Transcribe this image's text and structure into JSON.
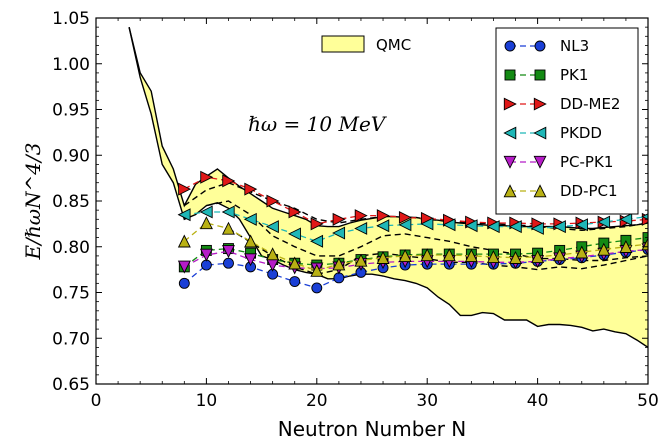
{
  "chart_data": {
    "type": "line",
    "xlabel": "Neutron Number N",
    "ylabel": "E/ℏωN^4/3",
    "annotation": "ℏω = 10 MeV",
    "xlim": [
      0,
      50
    ],
    "ylim": [
      0.65,
      1.05
    ],
    "x_ticks": [
      "0",
      "10",
      "20",
      "30",
      "40",
      "50"
    ],
    "y_ticks": [
      "0.65",
      "0.70",
      "0.75",
      "0.80",
      "0.85",
      "0.90",
      "0.95",
      "1.00",
      "1.05"
    ],
    "grid": false,
    "band": {
      "name": "QMC",
      "color": "#ffff99",
      "x": [
        3,
        4,
        5,
        6,
        7,
        8,
        9,
        10,
        11,
        12,
        13,
        14,
        15,
        16,
        17,
        18,
        19,
        20,
        21,
        22,
        23,
        24,
        25,
        26,
        27,
        28,
        29,
        30,
        31,
        32,
        33,
        34,
        35,
        36,
        37,
        38,
        39,
        40,
        41,
        42,
        43,
        44,
        45,
        46,
        47,
        48,
        49,
        50
      ],
      "upper": [
        1.04,
        0.99,
        0.97,
        0.91,
        0.885,
        0.845,
        0.868,
        0.877,
        0.885,
        0.875,
        0.866,
        0.858,
        0.85,
        0.842,
        0.838,
        0.834,
        0.83,
        0.823,
        0.822,
        0.822,
        0.826,
        0.829,
        0.831,
        0.833,
        0.833,
        0.832,
        0.832,
        0.83,
        0.829,
        0.827,
        0.826,
        0.825,
        0.824,
        0.823,
        0.823,
        0.822,
        0.822,
        0.822,
        0.822,
        0.822,
        0.821,
        0.82,
        0.82,
        0.821,
        0.822,
        0.823,
        0.824,
        0.826
      ],
      "lower": [
        1.04,
        0.985,
        0.945,
        0.89,
        0.87,
        0.83,
        0.835,
        0.845,
        0.848,
        0.842,
        0.83,
        0.81,
        0.79,
        0.786,
        0.78,
        0.775,
        0.772,
        0.77,
        0.765,
        0.765,
        0.768,
        0.77,
        0.77,
        0.768,
        0.765,
        0.763,
        0.76,
        0.755,
        0.745,
        0.737,
        0.725,
        0.725,
        0.728,
        0.727,
        0.72,
        0.72,
        0.72,
        0.713,
        0.715,
        0.715,
        0.714,
        0.712,
        0.708,
        0.71,
        0.707,
        0.705,
        0.698,
        0.69
      ],
      "mid_dashed": [
        {
          "x": [
            8,
            10,
            12,
            14,
            16,
            18,
            20,
            22,
            24,
            26,
            28,
            30,
            32,
            34,
            36,
            38,
            40,
            42,
            44,
            46,
            48,
            50
          ],
          "y": [
            0.845,
            0.862,
            0.87,
            0.86,
            0.85,
            0.842,
            0.83,
            0.826,
            0.83,
            0.833,
            0.833,
            0.83,
            0.828,
            0.826,
            0.825,
            0.824,
            0.822,
            0.82,
            0.818,
            0.82,
            0.822,
            0.826
          ]
        },
        {
          "x": [
            10,
            12,
            14,
            16,
            18,
            20,
            22,
            24,
            26,
            28,
            30,
            32,
            34,
            36,
            38,
            40,
            42,
            44,
            46,
            48,
            50
          ],
          "y": [
            0.845,
            0.85,
            0.835,
            0.812,
            0.8,
            0.79,
            0.79,
            0.8,
            0.812,
            0.814,
            0.81,
            0.806,
            0.8,
            0.796,
            0.792,
            0.787,
            0.787,
            0.785,
            0.785,
            0.788,
            0.79
          ]
        },
        {
          "x": [
            12,
            14,
            16,
            18,
            20,
            22,
            24,
            26,
            28,
            30,
            32,
            34,
            36,
            38,
            40,
            42,
            44,
            46,
            48,
            50
          ],
          "y": [
            0.82,
            0.805,
            0.79,
            0.778,
            0.77,
            0.775,
            0.79,
            0.793,
            0.79,
            0.787,
            0.783,
            0.783,
            0.78,
            0.778,
            0.775,
            0.778,
            0.776,
            0.78,
            0.785,
            0.79
          ]
        }
      ]
    },
    "series": [
      {
        "name": "NL3",
        "marker": "circle",
        "color": "#1a3fd6",
        "x": [
          8,
          10,
          12,
          14,
          16,
          18,
          20,
          22,
          24,
          26,
          28,
          30,
          32,
          34,
          36,
          38,
          40,
          42,
          44,
          46,
          48,
          50
        ],
        "y": [
          0.76,
          0.78,
          0.782,
          0.778,
          0.77,
          0.762,
          0.755,
          0.766,
          0.772,
          0.777,
          0.78,
          0.781,
          0.781,
          0.781,
          0.781,
          0.782,
          0.784,
          0.786,
          0.788,
          0.791,
          0.794,
          0.797
        ]
      },
      {
        "name": "PK1",
        "marker": "square",
        "color": "#148a14",
        "x": [
          8,
          10,
          12,
          14,
          16,
          18,
          20,
          22,
          24,
          26,
          28,
          30,
          32,
          34,
          36,
          38,
          40,
          42,
          44,
          46,
          48,
          50
        ],
        "y": [
          0.778,
          0.796,
          0.798,
          0.793,
          0.786,
          0.782,
          0.78,
          0.782,
          0.786,
          0.789,
          0.791,
          0.792,
          0.792,
          0.792,
          0.792,
          0.792,
          0.793,
          0.796,
          0.8,
          0.804,
          0.807,
          0.81
        ]
      },
      {
        "name": "DD-ME2",
        "marker": "triangle-right",
        "color": "#e01818",
        "x": [
          8,
          10,
          12,
          14,
          16,
          18,
          20,
          22,
          24,
          26,
          28,
          30,
          32,
          34,
          36,
          38,
          40,
          42,
          44,
          46,
          48,
          50
        ],
        "y": [
          0.863,
          0.876,
          0.872,
          0.863,
          0.85,
          0.838,
          0.825,
          0.83,
          0.834,
          0.834,
          0.832,
          0.831,
          0.829,
          0.827,
          0.826,
          0.826,
          0.825,
          0.825,
          0.826,
          0.827,
          0.828,
          0.83
        ]
      },
      {
        "name": "PKDD",
        "marker": "triangle-left",
        "color": "#1fb7b7",
        "x": [
          8,
          10,
          12,
          14,
          16,
          18,
          20,
          22,
          24,
          26,
          28,
          30,
          32,
          34,
          36,
          38,
          40,
          42,
          44,
          46,
          48,
          50
        ],
        "y": [
          0.835,
          0.838,
          0.838,
          0.83,
          0.822,
          0.814,
          0.806,
          0.815,
          0.82,
          0.823,
          0.824,
          0.825,
          0.824,
          0.823,
          0.822,
          0.822,
          0.82,
          0.822,
          0.824,
          0.827,
          0.83,
          0.833
        ]
      },
      {
        "name": "PC-PK1",
        "marker": "triangle-down",
        "color": "#b51cc7",
        "x": [
          8,
          10,
          12,
          14,
          16,
          18,
          20,
          22,
          24,
          26,
          28,
          30,
          32,
          34,
          36,
          38,
          40,
          42,
          44,
          46,
          48,
          50
        ],
        "y": [
          0.778,
          0.791,
          0.795,
          0.786,
          0.78,
          0.777,
          0.776,
          0.777,
          0.781,
          0.783,
          0.784,
          0.784,
          0.784,
          0.784,
          0.783,
          0.783,
          0.784,
          0.787,
          0.789,
          0.792,
          0.795,
          0.797
        ]
      },
      {
        "name": "DD-PC1",
        "marker": "triangle-up",
        "color": "#b9b114",
        "x": [
          8,
          10,
          12,
          14,
          16,
          18,
          20,
          22,
          24,
          26,
          28,
          30,
          32,
          34,
          36,
          38,
          40,
          42,
          44,
          46,
          48,
          50
        ],
        "y": [
          0.806,
          0.826,
          0.82,
          0.806,
          0.792,
          0.782,
          0.774,
          0.781,
          0.785,
          0.788,
          0.79,
          0.791,
          0.791,
          0.79,
          0.789,
          0.788,
          0.789,
          0.791,
          0.794,
          0.797,
          0.8,
          0.803
        ]
      }
    ]
  }
}
